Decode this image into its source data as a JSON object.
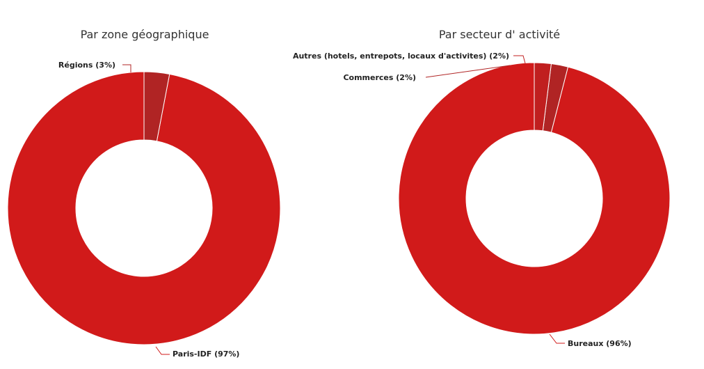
{
  "chart_data": [
    {
      "type": "pie",
      "title": "Par zone géographique",
      "slices": [
        {
          "label": "Paris-IDF (97%)",
          "value": 97,
          "color": "#d11a1a"
        },
        {
          "label": "Régions (3%)",
          "value": 3,
          "color": "#b02424"
        }
      ]
    },
    {
      "type": "pie",
      "title": "Par secteur d' activité",
      "slices": [
        {
          "label": "Bureaux (96%)",
          "value": 96,
          "color": "#d11a1a"
        },
        {
          "label": "Commerces (2%)",
          "value": 2,
          "color": "#b02424"
        },
        {
          "label": "Autres (hotels, entrepots, locaux d'activites) (2%)",
          "value": 2,
          "color": "#c01f1f"
        }
      ]
    }
  ]
}
